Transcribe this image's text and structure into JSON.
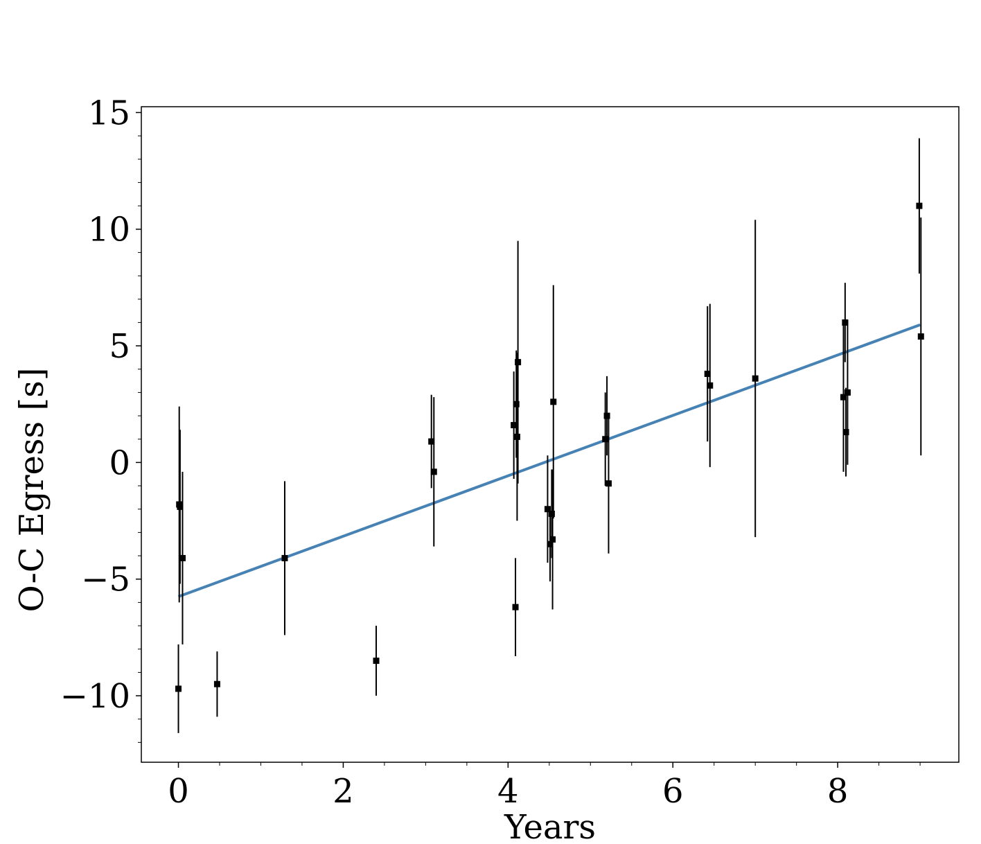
{
  "chart_data": {
    "type": "scatter",
    "xlabel": "Years",
    "ylabel": "O-C Egress [s]",
    "xlim": [
      -0.45,
      9.47
    ],
    "ylim": [
      -12.85,
      15.25
    ],
    "x_ticks": [
      0,
      2,
      4,
      6,
      8
    ],
    "y_ticks": [
      -10,
      -5,
      0,
      5,
      10,
      15
    ],
    "x_tick_labels": [
      "0",
      "2",
      "4",
      "6",
      "8"
    ],
    "y_tick_labels": [
      "−10",
      "−5",
      "0",
      "5",
      "10",
      "15"
    ],
    "grid": false,
    "legend": "none",
    "colors": {
      "points": "#000000",
      "fit": "#4682b4"
    },
    "series": [
      {
        "type": "errorbar",
        "marker": "square",
        "points": [
          {
            "x": 0.0,
            "y": -9.7,
            "err": 1.9
          },
          {
            "x": 0.01,
            "y": -1.8,
            "err": 4.2
          },
          {
            "x": 0.02,
            "y": -1.9,
            "err": 3.3
          },
          {
            "x": 0.05,
            "y": -4.1,
            "err": 3.7
          },
          {
            "x": 0.47,
            "y": -9.5,
            "err": 1.4
          },
          {
            "x": 1.29,
            "y": -4.1,
            "err": 3.3
          },
          {
            "x": 2.4,
            "y": -8.5,
            "err": 1.5
          },
          {
            "x": 3.07,
            "y": 0.9,
            "err": 2.0
          },
          {
            "x": 3.1,
            "y": -0.4,
            "err": 3.2
          },
          {
            "x": 4.07,
            "y": 1.6,
            "err": 2.3
          },
          {
            "x": 4.09,
            "y": -6.2,
            "err": 2.1
          },
          {
            "x": 4.1,
            "y": 2.5,
            "err": 2.3
          },
          {
            "x": 4.11,
            "y": 1.1,
            "err": 3.6
          },
          {
            "x": 4.12,
            "y": 4.3,
            "err": 5.2
          },
          {
            "x": 4.48,
            "y": -2.0,
            "err": 2.3
          },
          {
            "x": 4.51,
            "y": -3.5,
            "err": 1.6
          },
          {
            "x": 4.53,
            "y": -2.2,
            "err": 1.9
          },
          {
            "x": 4.54,
            "y": -3.3,
            "err": 3.0
          },
          {
            "x": 4.55,
            "y": 2.6,
            "err": 5.0
          },
          {
            "x": 5.18,
            "y": 1.0,
            "err": 2.0
          },
          {
            "x": 5.2,
            "y": 2.0,
            "err": 1.7
          },
          {
            "x": 5.22,
            "y": -0.9,
            "err": 3.0
          },
          {
            "x": 6.42,
            "y": 3.8,
            "err": 2.9
          },
          {
            "x": 6.45,
            "y": 3.3,
            "err": 3.5
          },
          {
            "x": 7.0,
            "y": 3.6,
            "err": 6.8
          },
          {
            "x": 8.07,
            "y": 2.8,
            "err": 3.2
          },
          {
            "x": 8.09,
            "y": 6.0,
            "err": 1.7
          },
          {
            "x": 8.1,
            "y": 1.3,
            "err": 1.9
          },
          {
            "x": 8.12,
            "y": 3.0,
            "err": 3.1
          },
          {
            "x": 8.99,
            "y": 11.0,
            "err": 2.9
          },
          {
            "x": 9.01,
            "y": 5.4,
            "err": 5.1
          }
        ]
      },
      {
        "type": "line",
        "x": [
          0.0,
          9.0
        ],
        "y": [
          -5.75,
          5.9
        ]
      }
    ]
  }
}
